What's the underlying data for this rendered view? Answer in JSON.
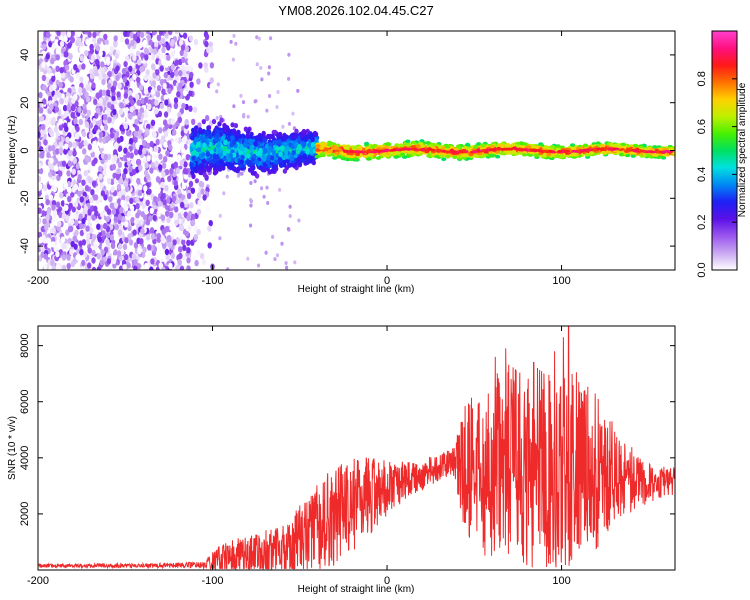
{
  "figure": {
    "title": "YM08.2026.102.04.45.C27"
  },
  "chart_data": [
    {
      "type": "heatmap",
      "name": "spectrogram",
      "xlabel": "Height of straight line (km)",
      "ylabel": "Frequency (Hz)",
      "xlim": [
        -200,
        165
      ],
      "ylim": [
        -50,
        50
      ],
      "xticks": [
        -200,
        -100,
        0,
        100
      ],
      "yticks": [
        -40,
        -20,
        0,
        20,
        40
      ],
      "colorbar": {
        "label": "Normalized spectral amplitude",
        "range": [
          0,
          1
        ],
        "ticks": [
          0.0,
          0.2,
          0.4,
          0.6,
          0.8
        ],
        "colors": [
          "#ffffff",
          "#c9a8f2",
          "#9a55ee",
          "#5a10e8",
          "#1d20f5",
          "#0088f5",
          "#00e0e0",
          "#00e060",
          "#48f000",
          "#c0f000",
          "#ffd000",
          "#ff7000",
          "#ff1818",
          "#ff1080",
          "#ff40d0"
        ]
      },
      "regions": [
        {
          "x_range": [
            -200,
            -112
          ],
          "description": "broadband noise",
          "amplitude_range": [
            0.0,
            0.2
          ]
        },
        {
          "x_range": [
            -112,
            -40
          ],
          "center_hz": 0,
          "halfwidth_hz": [
            10,
            6
          ],
          "amplitude_range": [
            0.15,
            0.5
          ]
        },
        {
          "x_range": [
            -40,
            165
          ],
          "center_hz": 0,
          "halfwidth_hz": [
            3,
            2
          ],
          "amplitude_range": [
            0.45,
            0.95
          ]
        }
      ]
    },
    {
      "type": "line",
      "name": "snr",
      "xlabel": "Height of straight line (km)",
      "ylabel": "SNR (10 * v/v)",
      "xlim": [
        -200,
        165
      ],
      "ylim": [
        0,
        8700
      ],
      "xticks": [
        -200,
        -100,
        0,
        100
      ],
      "yticks": [
        2000,
        4000,
        6000,
        8000
      ],
      "color": "#ee2a2a",
      "envelope": [
        {
          "x": -200,
          "base": 150,
          "amp": 60
        },
        {
          "x": -130,
          "base": 160,
          "amp": 80
        },
        {
          "x": -105,
          "base": 180,
          "amp": 120
        },
        {
          "x": -95,
          "base": 400,
          "amp": 600
        },
        {
          "x": -85,
          "base": 500,
          "amp": 650
        },
        {
          "x": -60,
          "base": 600,
          "amp": 1000
        },
        {
          "x": -45,
          "base": 1300,
          "amp": 1500
        },
        {
          "x": -30,
          "base": 1900,
          "amp": 1800
        },
        {
          "x": -15,
          "base": 2500,
          "amp": 1600
        },
        {
          "x": 0,
          "base": 2950,
          "amp": 1000
        },
        {
          "x": 15,
          "base": 3250,
          "amp": 600
        },
        {
          "x": 30,
          "base": 3650,
          "amp": 500
        },
        {
          "x": 38,
          "base": 3850,
          "amp": 500
        },
        {
          "x": 42,
          "base": 3600,
          "amp": 2000
        },
        {
          "x": 55,
          "base": 3600,
          "amp": 3200
        },
        {
          "x": 70,
          "base": 3800,
          "amp": 3600
        },
        {
          "x": 90,
          "base": 3600,
          "amp": 3600
        },
        {
          "x": 105,
          "base": 3700,
          "amp": 3700
        },
        {
          "x": 120,
          "base": 3500,
          "amp": 2800
        },
        {
          "x": 135,
          "base": 3300,
          "amp": 1400
        },
        {
          "x": 150,
          "base": 3100,
          "amp": 700
        },
        {
          "x": 165,
          "base": 3150,
          "amp": 500
        }
      ],
      "peaks": [
        {
          "x": 62,
          "y": 7600
        },
        {
          "x": 68,
          "y": 7900
        },
        {
          "x": 84,
          "y": 7400
        },
        {
          "x": 96,
          "y": 7800
        },
        {
          "x": 101,
          "y": 8300
        },
        {
          "x": 104,
          "y": 8700
        }
      ]
    }
  ]
}
